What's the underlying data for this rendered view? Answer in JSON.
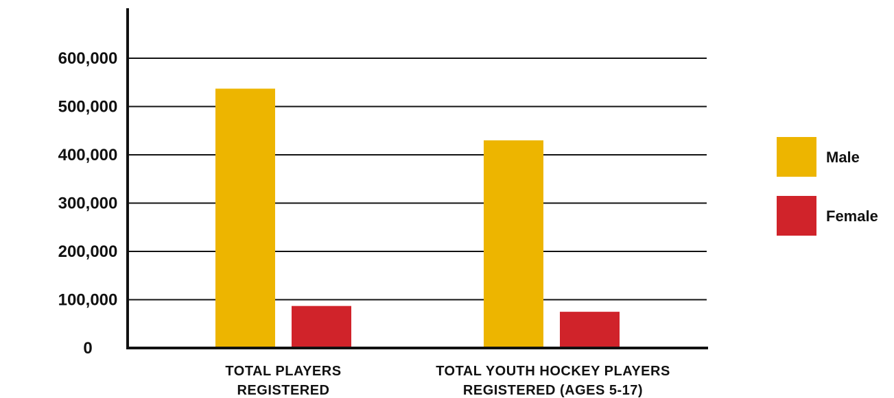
{
  "chart_data": {
    "type": "bar",
    "categories": [
      [
        "TOTAL PLAYERS",
        "REGISTERED"
      ],
      [
        "TOTAL YOUTH HOCKEY PLAYERS",
        "REGISTERED (AGES 5-17)"
      ]
    ],
    "series": [
      {
        "name": "Male",
        "color": "#EDB500",
        "values": [
          537000,
          430000
        ]
      },
      {
        "name": "Female",
        "color": "#D0232A",
        "values": [
          87000,
          75000
        ]
      }
    ],
    "y_ticks": [
      0,
      100000,
      200000,
      300000,
      400000,
      500000,
      600000
    ],
    "y_tick_labels": [
      "0",
      "100,000",
      "200,000",
      "300,000",
      "400,000",
      "500,000",
      "600,000"
    ],
    "ylim": [
      0,
      700000
    ],
    "grid": true,
    "legend_position": "right",
    "title": "",
    "xlabel": "",
    "ylabel": ""
  }
}
